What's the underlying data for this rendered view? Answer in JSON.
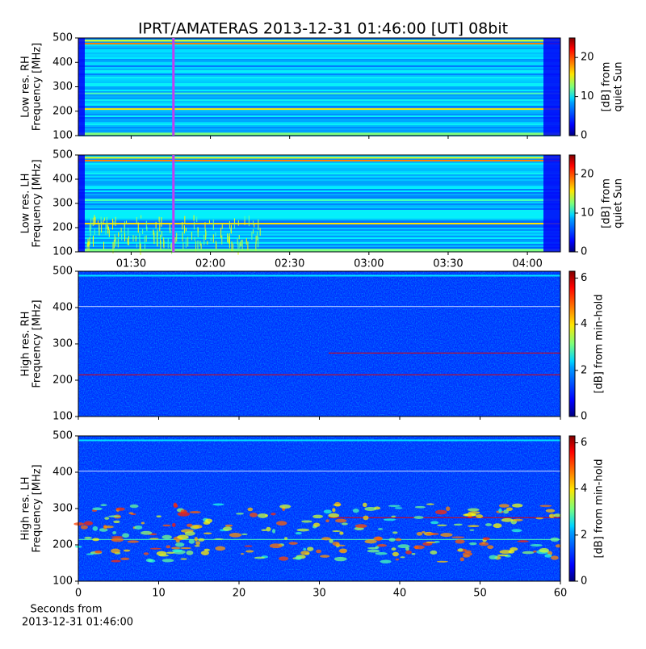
{
  "chart_data": [
    {
      "type": "spectrogram",
      "title": "IPRT/AMATERAS 2013-12-31 01:46:00 [UT]   08bit",
      "ylabel": [
        "Low res. RH",
        "Frequency [MHz]"
      ],
      "ylim": [
        100,
        500
      ],
      "yticks": [
        100,
        200,
        300,
        400,
        500
      ],
      "marker_x": 106,
      "marker_color": "#c040f0",
      "colorbar": {
        "label": [
          "[dB] from",
          "quiet Sun"
        ],
        "lim": [
          0,
          25
        ],
        "ticks": [
          0,
          10,
          20
        ],
        "colormap": "jet"
      }
    },
    {
      "type": "spectrogram",
      "ylabel": [
        "Low res. LH",
        "Frequency [MHz]"
      ],
      "ylim": [
        100,
        500
      ],
      "yticks": [
        100,
        200,
        300,
        400,
        500
      ],
      "xlim": [
        70,
        252.5
      ],
      "xticks": [
        {
          "value": 90,
          "label": "01:30"
        },
        {
          "value": 120,
          "label": "02:00"
        },
        {
          "value": 150,
          "label": "02:30"
        },
        {
          "value": 180,
          "label": "03:00"
        },
        {
          "value": 210,
          "label": "03:30"
        },
        {
          "value": 240,
          "label": "04:00"
        }
      ],
      "marker_x": 106,
      "marker_color": "#c040f0",
      "colorbar": {
        "label": [
          "[dB] from",
          "quiet Sun"
        ],
        "lim": [
          0,
          25
        ],
        "ticks": [
          0,
          10,
          20
        ],
        "colormap": "jet"
      }
    },
    {
      "type": "spectrogram",
      "ylabel": [
        "High res. RH",
        "Frequency [MHz]"
      ],
      "ylim": [
        100,
        500
      ],
      "yticks": [
        100,
        200,
        300,
        400,
        500
      ],
      "colorbar": {
        "label": [
          "[dB] from min-hold"
        ],
        "lim": [
          0,
          6.3
        ],
        "ticks": [
          0,
          2,
          4,
          6
        ],
        "colormap": "jet"
      }
    },
    {
      "type": "spectrogram",
      "ylabel": [
        "High res. LH",
        "Frequency [MHz]"
      ],
      "ylim": [
        100,
        500
      ],
      "yticks": [
        100,
        200,
        300,
        400,
        500
      ],
      "xlim": [
        0,
        60
      ],
      "xticks": [
        0,
        10,
        20,
        30,
        40,
        50,
        60
      ],
      "xlabel": [
        "Seconds from",
        "2013-12-31 01:46:00"
      ],
      "colorbar": {
        "label": [
          "[dB] from min-hold"
        ],
        "lim": [
          0,
          6.3
        ],
        "ticks": [
          0,
          2,
          4,
          6
        ],
        "colormap": "jet"
      }
    }
  ]
}
